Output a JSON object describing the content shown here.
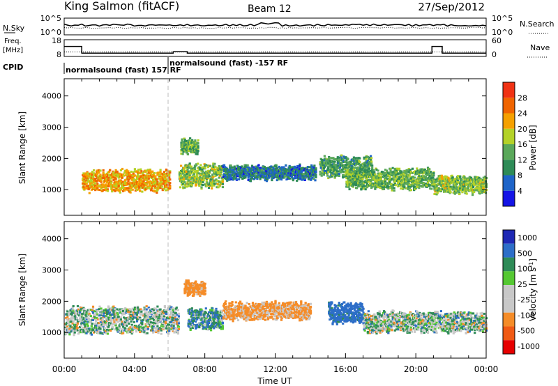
{
  "header": {
    "station": "King Salmon (fitACF)",
    "beam": "Beam 12",
    "date": "27/Sep/2012"
  },
  "noise_panel": {
    "left_label": "N.Sky",
    "right_label": "N.Search",
    "left_ticks": [
      "10^5",
      "10^0"
    ],
    "right_ticks": [
      "10^5",
      "10^0"
    ]
  },
  "freq_panel": {
    "left_label_1": "Freq.",
    "left_label_2": "[MHz]",
    "right_label": "Nave",
    "left_ticks": [
      "18",
      "8"
    ],
    "right_ticks": [
      "60",
      "0"
    ]
  },
  "cpid": {
    "label": "CPID",
    "segments": [
      "normalsound (fast) 157 RF",
      "normalsound (fast) -157 RF"
    ]
  },
  "colors": {
    "power": [
      "#1414e6",
      "#1e64c8",
      "#2e8b57",
      "#5aa85a",
      "#b4d228",
      "#f5a000",
      "#f06400",
      "#f03214",
      "#e60000"
    ],
    "velocity": [
      "#e60000",
      "#f05a14",
      "#f58c28",
      "#c8c8c8",
      "#c8c8c8",
      "#55c832",
      "#2e8b57",
      "#2d6ec8",
      "#1e28b4"
    ]
  },
  "chart_data": [
    {
      "type": "line",
      "title": "",
      "series": [
        {
          "name": "N.Sky",
          "style": "solid"
        },
        {
          "name": "N.Search",
          "style": "dotted"
        }
      ]
    },
    {
      "type": "line",
      "series": [
        {
          "name": "Freq.",
          "style": "solid",
          "x": [
            "00:00",
            "01:00",
            "06:00",
            "06:12",
            "07:00",
            "20:55",
            "21:30",
            "24:00"
          ],
          "y": [
            14,
            10,
            10,
            10.8,
            10,
            14,
            10,
            10
          ]
        },
        {
          "name": "Nave",
          "style": "dotted",
          "y_constant": 16
        }
      ],
      "y_left_range": [
        8,
        18
      ],
      "y_right_range": [
        0,
        60
      ]
    },
    {
      "type": "heatmap",
      "quantity": "Power",
      "ylabel": "Slant Range [km]",
      "colorbar_label": "Power [dB]",
      "colorbar_ticks": [
        4,
        8,
        12,
        16,
        20,
        24,
        28
      ],
      "colorbar_range": [
        0,
        32
      ],
      "xlim": [
        "00:00",
        "24:00"
      ],
      "ylim": [
        180,
        4550
      ],
      "y_ticks": [
        1000,
        2000,
        3000,
        4000
      ],
      "x_ticks": [
        "00:00",
        "04:00",
        "08:00",
        "12:00",
        "16:00",
        "20:00",
        "00:00"
      ],
      "echo_regions": [
        {
          "t_start": 1.0,
          "t_end": 6.0,
          "r_center": 1250,
          "r_width": 320,
          "power": 22
        },
        {
          "t_start": 6.5,
          "t_end": 9.0,
          "r_center": 1400,
          "r_width": 350,
          "power": 16
        },
        {
          "t_start": 6.6,
          "t_end": 7.6,
          "r_center": 2350,
          "r_width": 200,
          "power": 14
        },
        {
          "t_start": 9.0,
          "t_end": 14.3,
          "r_center": 1500,
          "r_width": 200,
          "power": 8
        },
        {
          "t_start": 14.5,
          "t_end": 17.5,
          "r_center": 1700,
          "r_width": 300,
          "power": 12
        },
        {
          "t_start": 16.0,
          "t_end": 21.0,
          "r_center": 1300,
          "r_width": 300,
          "power": 14
        },
        {
          "t_start": 21.0,
          "t_end": 24.0,
          "r_center": 1100,
          "r_width": 250,
          "power": 16
        }
      ]
    },
    {
      "type": "heatmap",
      "quantity": "Velocity",
      "ylabel": "Slant Range [km]",
      "colorbar_label": "Velocity [m s^-1]",
      "colorbar_ticks": [
        "1000",
        "500",
        "100",
        "25",
        "-25",
        "-100",
        "-500",
        "-1000"
      ],
      "xlabel": "Time UT",
      "xlim": [
        "00:00",
        "24:00"
      ],
      "ylim": [
        180,
        4550
      ],
      "y_ticks": [
        1000,
        2000,
        3000,
        4000
      ],
      "x_ticks": [
        "00:00",
        "04:00",
        "08:00",
        "12:00",
        "16:00",
        "20:00",
        "00:00"
      ],
      "echo_regions": [
        {
          "t_start": 0.0,
          "t_end": 6.5,
          "r_center": 1350,
          "r_width": 400,
          "velocity": 0
        },
        {
          "t_start": 6.8,
          "t_end": 8.0,
          "r_center": 2400,
          "r_width": 200,
          "velocity": -200
        },
        {
          "t_start": 7.0,
          "t_end": 9.0,
          "r_center": 1400,
          "r_width": 300,
          "velocity": 80
        },
        {
          "t_start": 9.0,
          "t_end": 14.0,
          "r_center": 1650,
          "r_width": 250,
          "velocity": -150
        },
        {
          "t_start": 15.0,
          "t_end": 17.0,
          "r_center": 1600,
          "r_width": 300,
          "velocity": 200
        },
        {
          "t_start": 17.0,
          "t_end": 24.0,
          "r_center": 1300,
          "r_width": 300,
          "velocity": 0
        }
      ]
    }
  ]
}
